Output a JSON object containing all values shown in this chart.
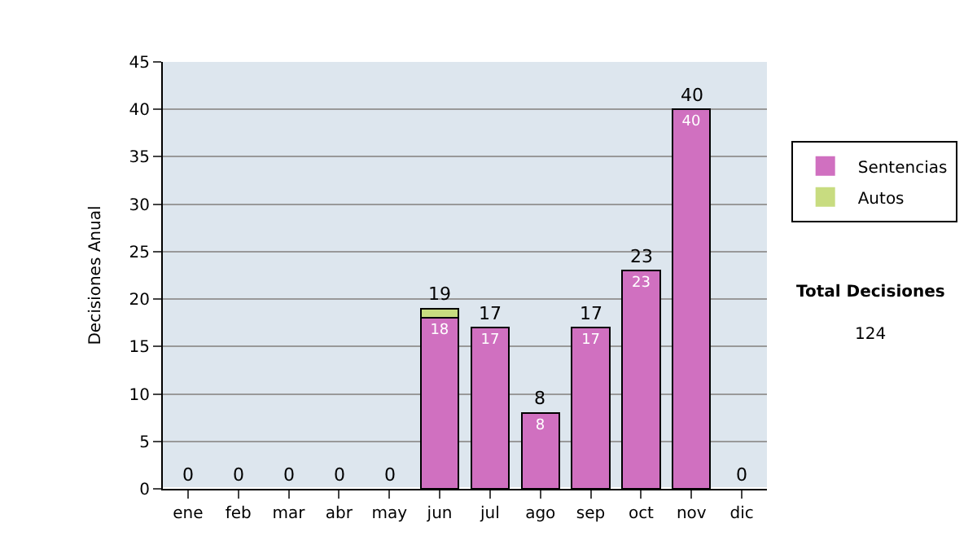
{
  "chart_data": {
    "type": "bar",
    "stacked": true,
    "ylabel": "Decisiones Anual",
    "categories": [
      "ene",
      "feb",
      "mar",
      "abr",
      "may",
      "jun",
      "jul",
      "ago",
      "sep",
      "oct",
      "nov",
      "dic"
    ],
    "series": [
      {
        "name": "Sentencias",
        "color": "#d070c0",
        "values": [
          0,
          0,
          0,
          0,
          0,
          18,
          17,
          8,
          17,
          23,
          40,
          0
        ],
        "value_labels": [
          null,
          null,
          null,
          null,
          null,
          "18",
          "17",
          "8",
          "17",
          "23",
          "40",
          null
        ]
      },
      {
        "name": "Autos",
        "color": "#c8dc80",
        "values": [
          0,
          0,
          0,
          0,
          0,
          1,
          0,
          0,
          0,
          0,
          0,
          0
        ]
      }
    ],
    "totals": [
      "0",
      "0",
      "0",
      "0",
      "0",
      "19",
      "17",
      "8",
      "17",
      "23",
      "40",
      "0"
    ],
    "ylim": [
      0,
      45
    ],
    "yticks": [
      0,
      5,
      10,
      15,
      20,
      25,
      30,
      35,
      40,
      45
    ],
    "grid": "y",
    "legend": "right",
    "annotations": [
      "Total Decisiones",
      "124"
    ]
  }
}
